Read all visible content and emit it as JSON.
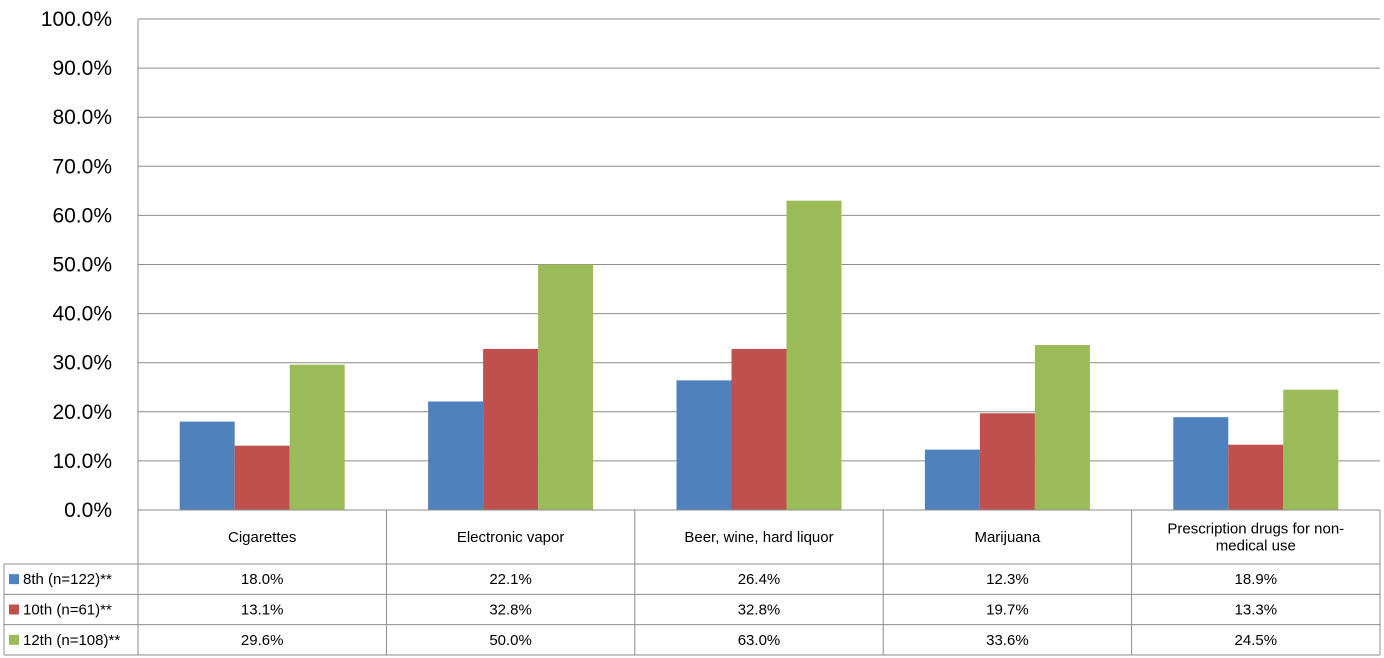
{
  "chart_data": {
    "type": "bar",
    "categories": [
      "Cigarettes",
      "Electronic vapor",
      "Beer, wine, hard liquor",
      "Marijuana",
      "Prescription drugs for non-medical use"
    ],
    "category_label_lines": [
      [
        "Cigarettes"
      ],
      [
        "Electronic vapor"
      ],
      [
        "Beer, wine, hard liquor"
      ],
      [
        "Marijuana"
      ],
      [
        "Prescription drugs for non-",
        "medical use"
      ]
    ],
    "series": [
      {
        "name": "8th (n=122)**",
        "color": "#4F81BD",
        "values": [
          18.0,
          22.1,
          26.4,
          12.3,
          18.9
        ]
      },
      {
        "name": "10th (n=61)**",
        "color": "#C0504D",
        "values": [
          13.1,
          32.8,
          32.8,
          19.7,
          13.3
        ]
      },
      {
        "name": "12th (n=108)**",
        "color": "#9BBB59",
        "values": [
          29.6,
          50.0,
          63.0,
          33.6,
          24.5
        ]
      }
    ],
    "ylim": [
      0,
      100
    ],
    "yticks": [
      "0.0%",
      "10.0%",
      "20.0%",
      "30.0%",
      "40.0%",
      "50.0%",
      "60.0%",
      "70.0%",
      "80.0%",
      "90.0%",
      "100.0%"
    ],
    "value_format": "percent_1dp",
    "grid": true,
    "legend": "data-table",
    "title": "",
    "xlabel": "",
    "ylabel": ""
  }
}
